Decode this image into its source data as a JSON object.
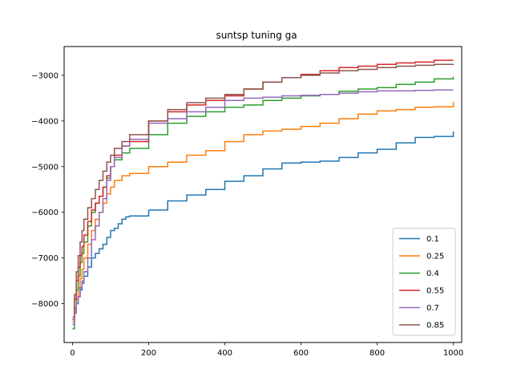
{
  "chart_data": {
    "type": "line",
    "title": "suntsp tuning ga",
    "xlabel": "",
    "ylabel": "",
    "xlim": [
      -22,
      1022
    ],
    "ylim": [
      -8850,
      -2370
    ],
    "xticks": [
      0,
      200,
      400,
      600,
      800,
      1000
    ],
    "xtick_labels": [
      "0",
      "200",
      "400",
      "600",
      "800",
      "1000"
    ],
    "yticks": [
      -8000,
      -7000,
      -6000,
      -5000,
      -4000,
      -3000
    ],
    "ytick_labels": [
      "−8000",
      "−7000",
      "−6000",
      "−5000",
      "−4000",
      "−3000"
    ],
    "grid": false,
    "legend_position": "lower-right",
    "series": [
      {
        "name": "0.1",
        "color": "#1f77b4",
        "x": [
          0,
          5,
          10,
          15,
          20,
          25,
          30,
          40,
          50,
          60,
          70,
          80,
          90,
          100,
          110,
          120,
          130,
          140,
          150,
          200,
          250,
          300,
          350,
          400,
          450,
          500,
          550,
          600,
          650,
          700,
          750,
          800,
          850,
          900,
          950,
          1000
        ],
        "y": [
          -8450,
          -8200,
          -8000,
          -7850,
          -7700,
          -7550,
          -7400,
          -7200,
          -7000,
          -6900,
          -6800,
          -6700,
          -6550,
          -6400,
          -6350,
          -6250,
          -6150,
          -6100,
          -6080,
          -5950,
          -5750,
          -5620,
          -5500,
          -5320,
          -5200,
          -5050,
          -4920,
          -4900,
          -4880,
          -4800,
          -4700,
          -4620,
          -4480,
          -4360,
          -4340,
          -4230
        ]
      },
      {
        "name": "0.25",
        "color": "#ff7f0e",
        "x": [
          0,
          5,
          10,
          15,
          20,
          25,
          30,
          40,
          50,
          60,
          70,
          80,
          90,
          100,
          110,
          130,
          150,
          200,
          250,
          300,
          350,
          400,
          450,
          500,
          550,
          600,
          650,
          700,
          750,
          800,
          850,
          900,
          950,
          1000
        ],
        "y": [
          -8400,
          -8150,
          -7900,
          -7650,
          -7450,
          -7250,
          -7000,
          -6700,
          -6400,
          -6150,
          -6000,
          -5800,
          -5600,
          -5450,
          -5300,
          -5200,
          -5150,
          -5000,
          -4900,
          -4750,
          -4650,
          -4450,
          -4300,
          -4220,
          -4180,
          -4120,
          -4050,
          -3950,
          -3850,
          -3780,
          -3750,
          -3700,
          -3690,
          -3580
        ]
      },
      {
        "name": "0.4",
        "color": "#2ca02c",
        "x": [
          0,
          5,
          10,
          15,
          20,
          25,
          30,
          40,
          50,
          60,
          70,
          80,
          90,
          100,
          110,
          130,
          150,
          200,
          250,
          300,
          350,
          400,
          450,
          500,
          550,
          600,
          650,
          700,
          750,
          800,
          850,
          900,
          950,
          1000
        ],
        "y": [
          -8550,
          -8100,
          -7700,
          -7400,
          -7100,
          -6900,
          -6650,
          -6300,
          -6000,
          -5800,
          -5650,
          -5450,
          -5250,
          -5000,
          -4850,
          -4700,
          -4600,
          -4300,
          -4050,
          -3900,
          -3800,
          -3700,
          -3650,
          -3550,
          -3500,
          -3450,
          -3420,
          -3350,
          -3300,
          -3270,
          -3200,
          -3150,
          -3080,
          -3030
        ]
      },
      {
        "name": "0.55",
        "color": "#d62728",
        "x": [
          0,
          5,
          10,
          15,
          20,
          25,
          30,
          40,
          50,
          60,
          70,
          80,
          90,
          100,
          110,
          130,
          150,
          200,
          250,
          300,
          350,
          400,
          450,
          500,
          550,
          600,
          650,
          700,
          750,
          800,
          850,
          900,
          950,
          1000
        ],
        "y": [
          -8350,
          -7900,
          -7500,
          -7200,
          -6950,
          -6750,
          -6500,
          -6200,
          -5950,
          -5800,
          -5650,
          -5450,
          -5200,
          -5000,
          -4750,
          -4550,
          -4450,
          -4000,
          -3800,
          -3650,
          -3550,
          -3450,
          -3300,
          -3150,
          -3050,
          -2980,
          -2900,
          -2830,
          -2800,
          -2760,
          -2730,
          -2710,
          -2670,
          -2670
        ]
      },
      {
        "name": "0.7",
        "color": "#9467bd",
        "x": [
          0,
          5,
          10,
          15,
          20,
          25,
          30,
          40,
          50,
          60,
          70,
          80,
          90,
          100,
          110,
          130,
          150,
          200,
          250,
          300,
          350,
          400,
          450,
          500,
          550,
          600,
          650,
          700,
          750,
          800,
          850,
          900,
          950,
          1000
        ],
        "y": [
          -8450,
          -8200,
          -8000,
          -7850,
          -7650,
          -7500,
          -7300,
          -7000,
          -6600,
          -6300,
          -6000,
          -5700,
          -5300,
          -5000,
          -4800,
          -4550,
          -4400,
          -4050,
          -3950,
          -3800,
          -3700,
          -3550,
          -3500,
          -3480,
          -3450,
          -3440,
          -3420,
          -3390,
          -3360,
          -3340,
          -3340,
          -3330,
          -3320,
          -3320
        ]
      },
      {
        "name": "0.85",
        "color": "#8c564b",
        "x": [
          0,
          5,
          10,
          15,
          20,
          25,
          30,
          40,
          50,
          60,
          70,
          80,
          90,
          100,
          110,
          130,
          150,
          200,
          250,
          300,
          350,
          400,
          450,
          500,
          550,
          600,
          650,
          700,
          750,
          800,
          850,
          900,
          950,
          1000
        ],
        "y": [
          -8300,
          -7800,
          -7300,
          -6950,
          -6650,
          -6400,
          -6150,
          -5900,
          -5700,
          -5500,
          -5300,
          -5100,
          -4900,
          -4750,
          -4600,
          -4450,
          -4300,
          -4000,
          -3750,
          -3600,
          -3500,
          -3420,
          -3300,
          -3150,
          -3050,
          -3000,
          -2950,
          -2900,
          -2870,
          -2830,
          -2800,
          -2780,
          -2760,
          -2750
        ]
      }
    ]
  }
}
